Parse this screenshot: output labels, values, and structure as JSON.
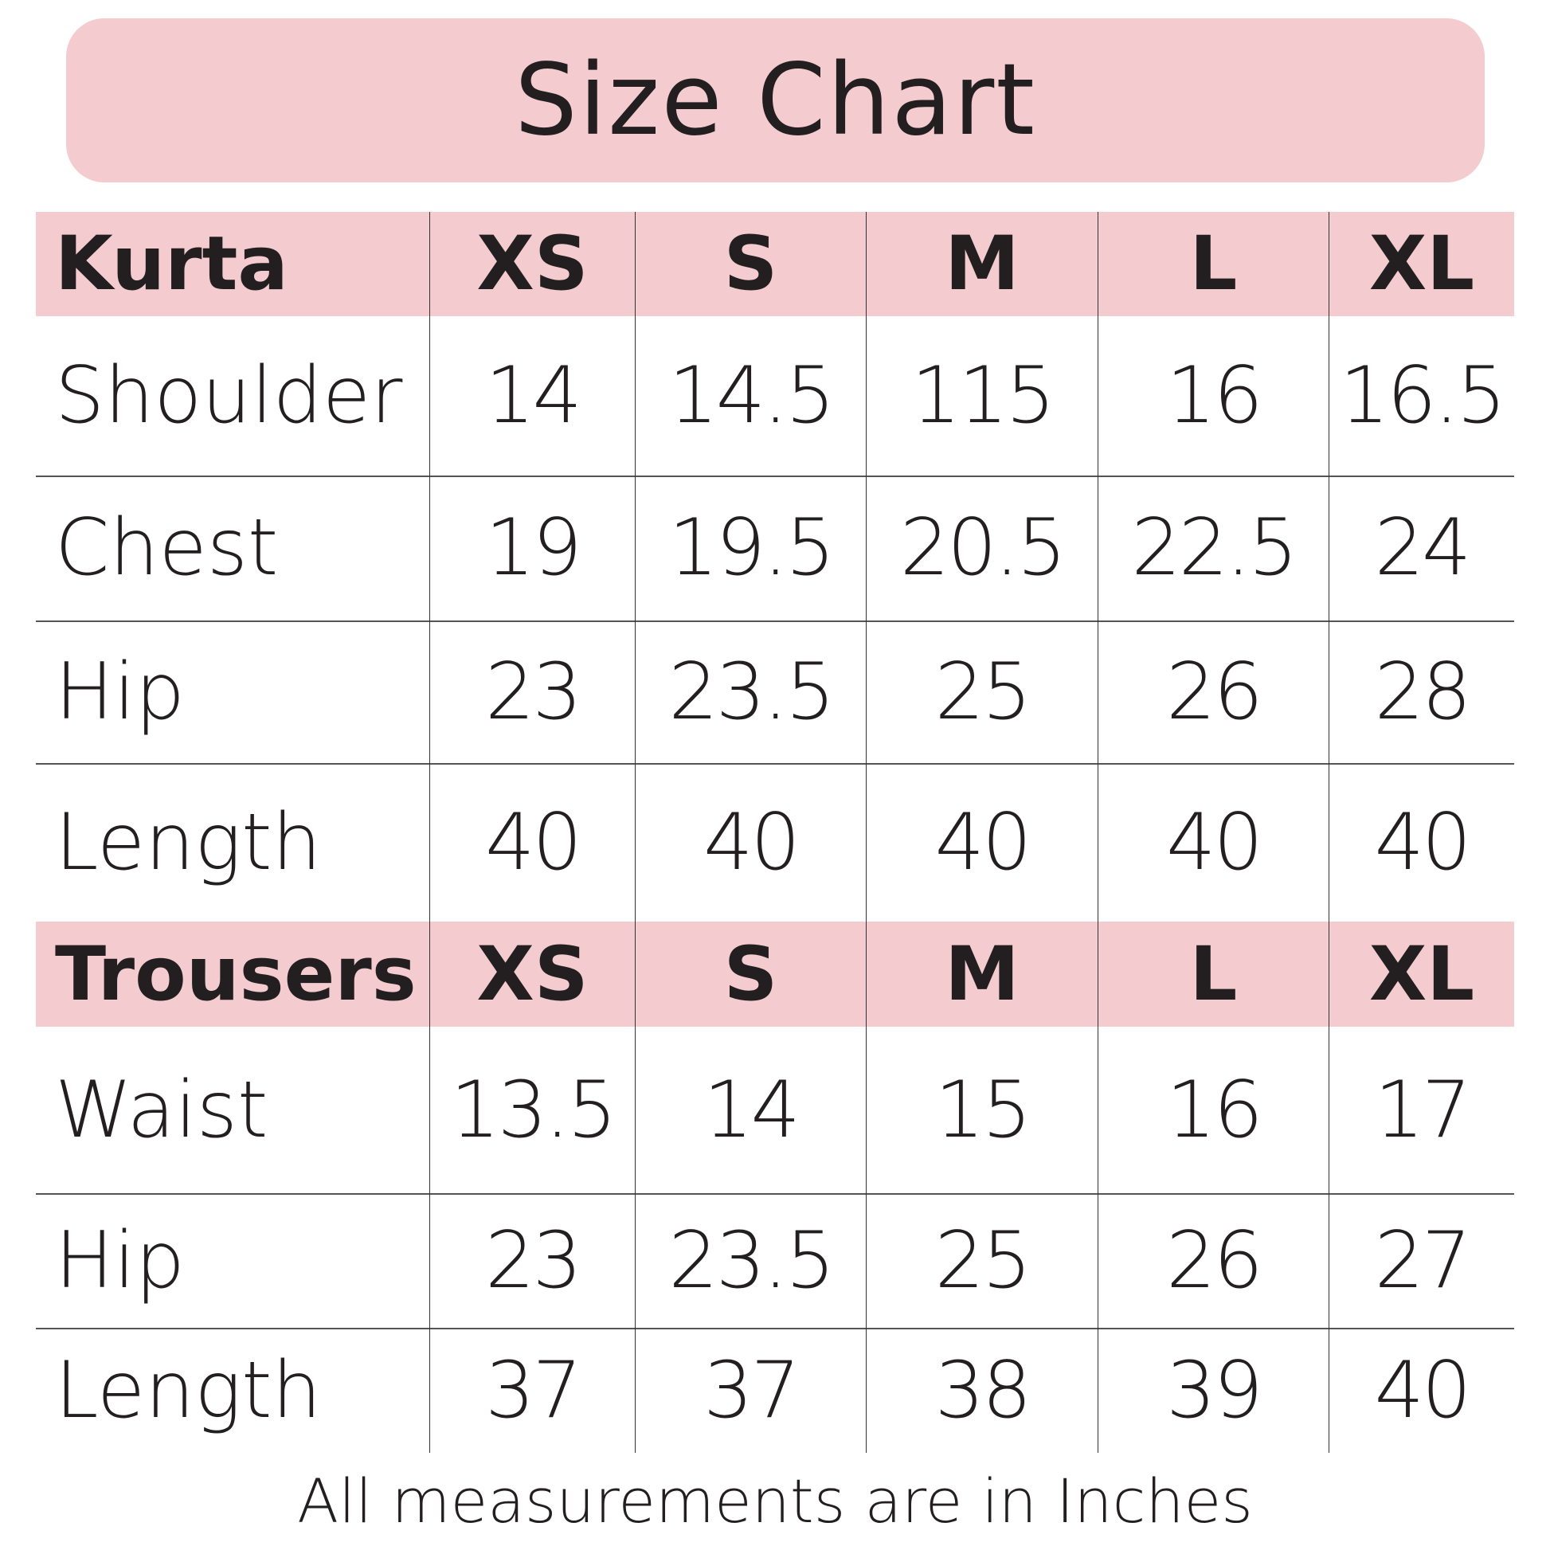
{
  "title": "Size Chart",
  "colors": {
    "header_bg": "#f4cbcf",
    "text": "#231f20"
  },
  "sizes": [
    "XS",
    "S",
    "M",
    "L",
    "XL"
  ],
  "sections": [
    {
      "name": "Kurta",
      "rows": [
        {
          "label": "Shoulder",
          "values": [
            "14",
            "14.5",
            "115",
            "16",
            "16.5"
          ]
        },
        {
          "label": "Chest",
          "values": [
            "19",
            "19.5",
            "20.5",
            "22.5",
            "24"
          ]
        },
        {
          "label": "Hip",
          "values": [
            "23",
            "23.5",
            "25",
            "26",
            "28"
          ]
        },
        {
          "label": "Length",
          "values": [
            "40",
            "40",
            "40",
            "40",
            "40"
          ]
        }
      ]
    },
    {
      "name": "Trousers",
      "rows": [
        {
          "label": "Waist",
          "values": [
            "13.5",
            "14",
            "15",
            "16",
            "17"
          ]
        },
        {
          "label": "Hip",
          "values": [
            "23",
            "23.5",
            "25",
            "26",
            "27"
          ]
        },
        {
          "label": "Length",
          "values": [
            "37",
            "37",
            "38",
            "39",
            "40"
          ]
        }
      ]
    }
  ],
  "footer": "All measurements are in Inches"
}
